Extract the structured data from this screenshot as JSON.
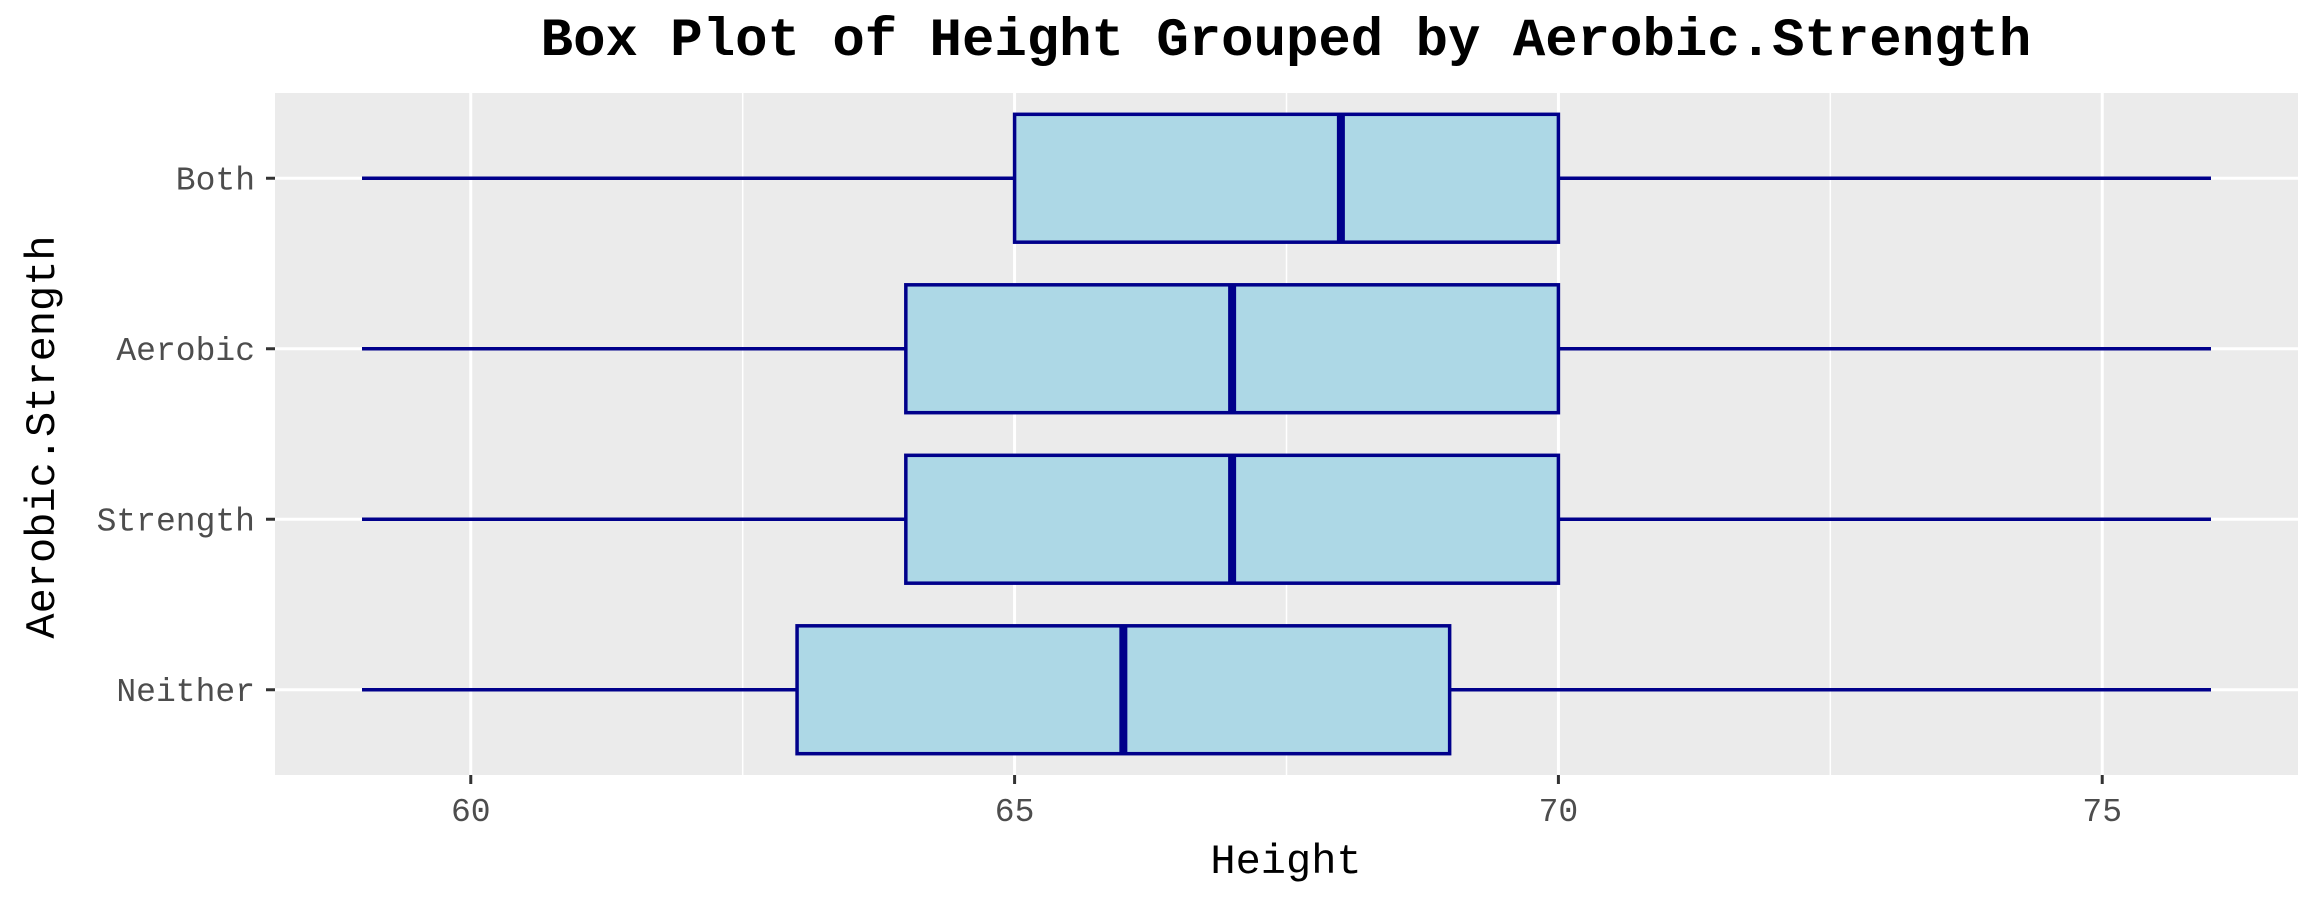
{
  "chart_data": {
    "type": "boxplot",
    "orientation": "horizontal",
    "title": "Box Plot of Height Grouped by Aerobic.Strength",
    "xlabel": "Height",
    "ylabel": "Aerobic.Strength",
    "xlim": [
      58.2,
      76.8
    ],
    "x_ticks": [
      60,
      65,
      70,
      75
    ],
    "x_tick_labels": [
      "60",
      "65",
      "70",
      "75"
    ],
    "grid": true,
    "categories": [
      "Both",
      "Aerobic",
      "Strength",
      "Neither"
    ],
    "series": [
      {
        "category": "Both",
        "min": 59,
        "q1": 65,
        "median": 68,
        "q3": 70,
        "max": 76
      },
      {
        "category": "Aerobic",
        "min": 59,
        "q1": 64,
        "median": 67,
        "q3": 70,
        "max": 76
      },
      {
        "category": "Strength",
        "min": 59,
        "q1": 64,
        "median": 67,
        "q3": 70,
        "max": 76
      },
      {
        "category": "Neither",
        "min": 59,
        "q1": 63,
        "median": 66,
        "q3": 69,
        "max": 76
      }
    ],
    "colors": {
      "box_fill": "#add8e6",
      "box_stroke": "#00008b",
      "panel_background": "#ebebeb",
      "grid": "#ffffff"
    }
  }
}
